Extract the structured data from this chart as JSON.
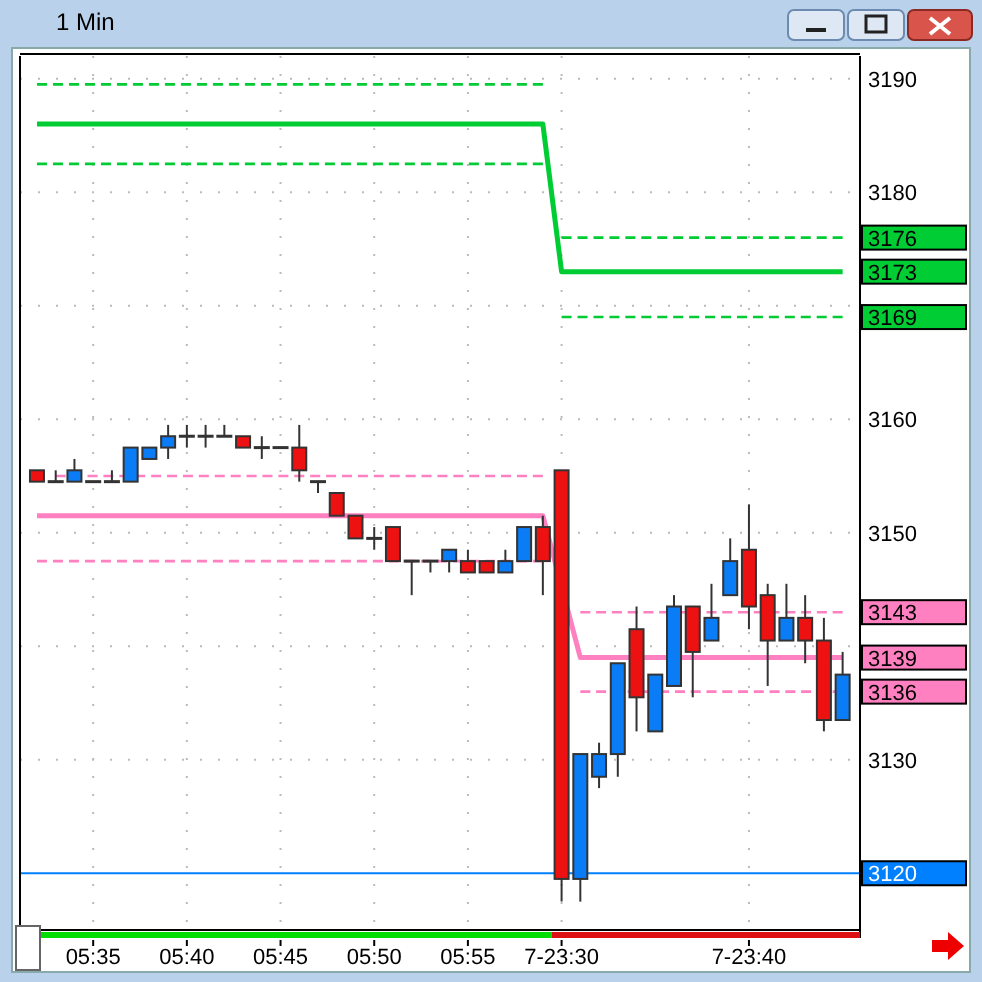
{
  "chart_data": {
    "type": "candlestick",
    "title": "1 Min",
    "categories": [
      null,
      null,
      null,
      "05:35",
      null,
      null,
      null,
      null,
      "05:40",
      null,
      null,
      null,
      null,
      "05:45",
      null,
      null,
      null,
      null,
      "05:50",
      null,
      null,
      null,
      null,
      "05:55",
      null,
      null,
      null,
      null,
      "7-23:30",
      null,
      null,
      null,
      null,
      null,
      null,
      null,
      null,
      null,
      "7-23:40",
      null,
      null,
      null,
      null,
      null
    ],
    "ohlc": [
      [
        3155.5,
        3155.5,
        3154.5,
        3154.5
      ],
      [
        3154.5,
        3155.5,
        3154.5,
        3154.5
      ],
      [
        3154.5,
        3156.5,
        3154.5,
        3155.5
      ],
      [
        3154.5,
        3154.5,
        3154.5,
        3154.5
      ],
      [
        3154.5,
        3155.5,
        3154.5,
        3154.5
      ],
      [
        3154.5,
        3157.5,
        3154.5,
        3157.5
      ],
      [
        3156.5,
        3157.5,
        3156.5,
        3157.5
      ],
      [
        3157.5,
        3159.5,
        3156.5,
        3158.5
      ],
      [
        3158.5,
        3159.5,
        3157.5,
        3158.5
      ],
      [
        3158.5,
        3159.5,
        3157.5,
        3158.5
      ],
      [
        3158.5,
        3159.5,
        3158.5,
        3158.5
      ],
      [
        3158.5,
        3158.5,
        3157.5,
        3157.5
      ],
      [
        3157.5,
        3158.5,
        3156.5,
        3157.5
      ],
      [
        3157.5,
        3157.5,
        3157.5,
        3157.5
      ],
      [
        3157.5,
        3159.5,
        3154.5,
        3155.5
      ],
      [
        3154.5,
        3154.5,
        3153.5,
        3154.5
      ],
      [
        3153.5,
        3153.5,
        3151.5,
        3151.5
      ],
      [
        3151.5,
        3151.5,
        3149.5,
        3149.5
      ],
      [
        3149.5,
        3150.5,
        3148.5,
        3149.5
      ],
      [
        3150.5,
        3150.5,
        3147.5,
        3147.5
      ],
      [
        3147.5,
        3147.5,
        3144.5,
        3147.5
      ],
      [
        3147.5,
        3147.5,
        3146.5,
        3147.5
      ],
      [
        3147.5,
        3148.5,
        3146.5,
        3148.5
      ],
      [
        3147.5,
        3148.5,
        3146.5,
        3146.5
      ],
      [
        3147.5,
        3147.5,
        3146.5,
        3146.5
      ],
      [
        3146.5,
        3148.5,
        3146.5,
        3147.5
      ],
      [
        3147.5,
        3150.5,
        3147.5,
        3150.5
      ],
      [
        3150.5,
        3151.5,
        3144.5,
        3147.5
      ],
      [
        3155.5,
        3155.5,
        3117.5,
        3119.5
      ],
      [
        3119.5,
        3130.5,
        3117.5,
        3130.5
      ],
      [
        3128.5,
        3131.5,
        3127.5,
        3130.5
      ],
      [
        3130.5,
        3138.5,
        3128.5,
        3138.5
      ],
      [
        3141.5,
        3143.5,
        3132.5,
        3135.5
      ],
      [
        3132.5,
        3137.5,
        3132.5,
        3137.5
      ],
      [
        3136.5,
        3144.5,
        3136.5,
        3143.5
      ],
      [
        3143.5,
        3143.5,
        3135.5,
        3139.5
      ],
      [
        3140.5,
        3145.5,
        3140.5,
        3142.5
      ],
      [
        3144.5,
        3149.5,
        3144.5,
        3147.5
      ],
      [
        3148.5,
        3152.5,
        3141.5,
        3143.5
      ],
      [
        3144.5,
        3145.5,
        3136.5,
        3140.5
      ],
      [
        3140.5,
        3145.5,
        3140.5,
        3142.5
      ],
      [
        3142.5,
        3144.5,
        3138.5,
        3140.5
      ],
      [
        3140.5,
        3142.5,
        3132.5,
        3133.5
      ],
      [
        3133.5,
        3139.5,
        3133.5,
        3137.5
      ]
    ],
    "series": [
      {
        "type": "line",
        "color": "#00cc33",
        "line_style": "dashed",
        "values": [
          3189.5,
          3189.5,
          3189.5,
          3189.5,
          3189.5,
          3189.5,
          3189.5,
          3189.5,
          3189.5,
          3189.5,
          3189.5,
          3189.5,
          3189.5,
          3189.5,
          3189.5,
          3189.5,
          3189.5,
          3189.5,
          3189.5,
          3189.5,
          3189.5,
          3189.5,
          3189.5,
          3189.5,
          3189.5,
          3189.5,
          3189.5,
          3189.5,
          null,
          null,
          null,
          null,
          null,
          null,
          null,
          null,
          null,
          null,
          null,
          null,
          null,
          null,
          null,
          null
        ]
      },
      {
        "type": "line",
        "color": "#00cc33",
        "line_style": "solid",
        "values": [
          3186,
          3186,
          3186,
          3186,
          3186,
          3186,
          3186,
          3186,
          3186,
          3186,
          3186,
          3186,
          3186,
          3186,
          3186,
          3186,
          3186,
          3186,
          3186,
          3186,
          3186,
          3186,
          3186,
          3186,
          3186,
          3186,
          3186,
          3186,
          3173,
          3173,
          3173,
          3173,
          3173,
          3173,
          3173,
          3173,
          3173,
          3173,
          3173,
          3173,
          3173,
          3173,
          3173,
          3173
        ],
        "value_labels": [
          null,
          null,
          null,
          null,
          null,
          null,
          null,
          null,
          null,
          null,
          null,
          null,
          null,
          null,
          null,
          null,
          null,
          null,
          null,
          null,
          null,
          null,
          null,
          null,
          null,
          null,
          null,
          null,
          null,
          null,
          null,
          null,
          null,
          null,
          null,
          null,
          null,
          null,
          null,
          null,
          null,
          null,
          null,
          "3173"
        ]
      },
      {
        "type": "line",
        "color": "#00cc33",
        "line_style": "dashed",
        "values": [
          3182.5,
          3182.5,
          3182.5,
          3182.5,
          3182.5,
          3182.5,
          3182.5,
          3182.5,
          3182.5,
          3182.5,
          3182.5,
          3182.5,
          3182.5,
          3182.5,
          3182.5,
          3182.5,
          3182.5,
          3182.5,
          3182.5,
          3182.5,
          3182.5,
          3182.5,
          3182.5,
          3182.5,
          3182.5,
          3182.5,
          3182.5,
          3182.5,
          null,
          null,
          null,
          null,
          null,
          null,
          null,
          null,
          null,
          null,
          null,
          null,
          null,
          null,
          null,
          null
        ]
      },
      {
        "type": "line",
        "color": "#00cc33",
        "line_style": "dashed",
        "values": [
          null,
          null,
          null,
          null,
          null,
          null,
          null,
          null,
          null,
          null,
          null,
          null,
          null,
          null,
          null,
          null,
          null,
          null,
          null,
          null,
          null,
          null,
          null,
          null,
          null,
          null,
          null,
          null,
          3176,
          3176,
          3176,
          3176,
          3176,
          3176,
          3176,
          3176,
          3176,
          3176,
          3176,
          3176,
          3176,
          3176,
          3176,
          3176
        ],
        "value_labels": [
          null,
          null,
          null,
          null,
          null,
          null,
          null,
          null,
          null,
          null,
          null,
          null,
          null,
          null,
          null,
          null,
          null,
          null,
          null,
          null,
          null,
          null,
          null,
          null,
          null,
          null,
          null,
          null,
          null,
          null,
          null,
          null,
          null,
          null,
          null,
          null,
          null,
          null,
          null,
          null,
          null,
          null,
          null,
          "3176"
        ]
      },
      {
        "type": "line",
        "color": "#00cc33",
        "line_style": "dashed",
        "values": [
          null,
          null,
          null,
          null,
          null,
          null,
          null,
          null,
          null,
          null,
          null,
          null,
          null,
          null,
          null,
          null,
          null,
          null,
          null,
          null,
          null,
          null,
          null,
          null,
          null,
          null,
          null,
          null,
          3169,
          3169,
          3169,
          3169,
          3169,
          3169,
          3169,
          3169,
          3169,
          3169,
          3169,
          3169,
          3169,
          3169,
          3169,
          3169
        ],
        "value_labels": [
          null,
          null,
          null,
          null,
          null,
          null,
          null,
          null,
          null,
          null,
          null,
          null,
          null,
          null,
          null,
          null,
          null,
          null,
          null,
          null,
          null,
          null,
          null,
          null,
          null,
          null,
          null,
          null,
          null,
          null,
          null,
          null,
          null,
          null,
          null,
          null,
          null,
          null,
          null,
          null,
          null,
          null,
          null,
          "3169"
        ]
      },
      {
        "type": "line",
        "color": "#ff80c0",
        "line_style": "dashed",
        "values": [
          null,
          3155,
          null,
          3155,
          3155,
          null,
          3155,
          3155,
          3155,
          3155,
          3155,
          3155,
          3155,
          3155,
          3155,
          3155,
          3155,
          3155,
          3155,
          3155,
          3155,
          3155,
          3155,
          3155,
          3155,
          3155,
          3155,
          3155,
          null,
          null,
          null,
          null,
          null,
          null,
          null,
          null,
          null,
          null,
          null,
          null,
          null,
          null,
          null,
          null
        ]
      },
      {
        "type": "line",
        "color": "#ff80c0",
        "line_style": "solid",
        "values": [
          3151.5,
          3151.5,
          3151.5,
          3151.5,
          3151.5,
          3151.5,
          3151.5,
          3151.5,
          3151.5,
          3151.5,
          3151.5,
          3151.5,
          3151.5,
          3151.5,
          3151.5,
          3151.5,
          3151.5,
          3151.5,
          3151.5,
          3151.5,
          3151.5,
          3151.5,
          3151.5,
          3151.5,
          3151.5,
          3151.5,
          3151.5,
          3151.5,
          null,
          3139,
          3139,
          3139,
          null,
          3139,
          null,
          3139,
          3139,
          3139,
          3139,
          3139,
          3139,
          3139,
          null,
          3139
        ],
        "value_labels": [
          null,
          null,
          null,
          null,
          null,
          null,
          null,
          null,
          null,
          null,
          null,
          null,
          null,
          null,
          null,
          null,
          null,
          null,
          null,
          null,
          null,
          null,
          null,
          null,
          null,
          null,
          null,
          null,
          null,
          null,
          null,
          null,
          null,
          null,
          null,
          null,
          null,
          null,
          null,
          null,
          null,
          null,
          null,
          "3139"
        ]
      },
      {
        "type": "line",
        "color": "#ff80c0",
        "line_style": "dashed",
        "values": [
          3147.5,
          3147.5,
          3147.5,
          3147.5,
          3147.5,
          3147.5,
          3147.5,
          3147.5,
          3147.5,
          3147.5,
          3147.5,
          3147.5,
          3147.5,
          3147.5,
          3147.5,
          3147.5,
          3147.5,
          3147.5,
          3147.5,
          3147.5,
          3147.5,
          3147.5,
          3147.5,
          3147.5,
          3147.5,
          3147.5,
          3147.5,
          3147.5,
          null,
          null,
          null,
          null,
          null,
          null,
          null,
          null,
          null,
          null,
          null,
          null,
          null,
          null,
          null,
          null
        ]
      },
      {
        "type": "line",
        "color": "#ff80c0",
        "line_style": "dashed",
        "values": [
          null,
          null,
          null,
          null,
          null,
          null,
          null,
          null,
          null,
          null,
          null,
          null,
          null,
          null,
          null,
          null,
          null,
          null,
          null,
          null,
          null,
          null,
          null,
          null,
          null,
          null,
          null,
          null,
          null,
          3143,
          3143,
          3143,
          3143,
          3143,
          null,
          null,
          3143,
          3143,
          3143,
          null,
          3143,
          3143,
          3143,
          3143
        ],
        "value_labels": [
          null,
          null,
          null,
          null,
          null,
          null,
          null,
          null,
          null,
          null,
          null,
          null,
          null,
          null,
          null,
          null,
          null,
          null,
          null,
          null,
          null,
          null,
          null,
          null,
          null,
          null,
          null,
          null,
          null,
          null,
          null,
          null,
          null,
          null,
          null,
          null,
          null,
          null,
          null,
          null,
          null,
          null,
          null,
          "3143"
        ]
      },
      {
        "type": "line",
        "color": "#ff80c0",
        "line_style": "dashed",
        "values": [
          null,
          null,
          null,
          null,
          null,
          null,
          null,
          null,
          null,
          null,
          null,
          null,
          null,
          null,
          null,
          null,
          null,
          null,
          null,
          null,
          null,
          null,
          null,
          null,
          null,
          null,
          null,
          null,
          null,
          3136,
          3136,
          null,
          null,
          null,
          3136,
          3136,
          3136,
          3136,
          3136,
          3136,
          3136,
          3136,
          null,
          3136
        ],
        "value_labels": [
          null,
          null,
          null,
          null,
          null,
          null,
          null,
          null,
          null,
          null,
          null,
          null,
          null,
          null,
          null,
          null,
          null,
          null,
          null,
          null,
          null,
          null,
          null,
          null,
          null,
          null,
          null,
          null,
          null,
          null,
          null,
          null,
          null,
          null,
          null,
          null,
          null,
          null,
          null,
          null,
          null,
          null,
          null,
          "3136"
        ]
      }
    ],
    "ylim": [
      3115,
      3192
    ],
    "yticks": [
      3130,
      {
        "value": 3140,
        "label": null
      },
      3150,
      3160,
      {
        "value": 3170,
        "label": null
      },
      3180,
      3190
    ],
    "ref_lines": [
      {
        "axis": "y",
        "value": 3120,
        "label": "3120",
        "color": "#0080ff"
      }
    ],
    "grid": true
  }
}
